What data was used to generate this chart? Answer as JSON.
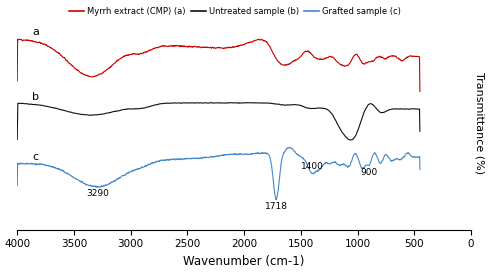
{
  "xlabel": "Wavenumber (cm-1)",
  "ylabel": "Transmittance (%)",
  "xlim": [
    4000,
    0
  ],
  "xticks": [
    4000,
    3500,
    3000,
    2500,
    2000,
    1500,
    1000,
    500,
    0
  ],
  "colors": {
    "a": "#cc0000",
    "b": "#111111",
    "c": "#4488cc"
  },
  "legend": [
    {
      "label": "Myrrh extract (CMP) (a)",
      "color": "#cc0000"
    },
    {
      "label": "Untreated sample (b)",
      "color": "#111111"
    },
    {
      "label": "Grafted sample (c)",
      "color": "#4488cc"
    }
  ],
  "offsets": {
    "a": 0.62,
    "b": 0.36,
    "c": 0.04
  },
  "scales": {
    "a": 0.28,
    "b": 0.2,
    "c": 0.28
  }
}
